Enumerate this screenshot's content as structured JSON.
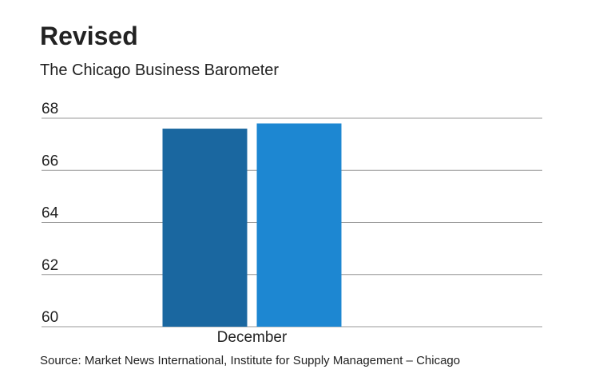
{
  "chart_data": {
    "type": "bar",
    "title": "Revised",
    "subtitle": "The Chicago Business Barometer",
    "categories": [
      "December"
    ],
    "series": [
      {
        "color": "#1a67a0",
        "values": [
          67.6
        ]
      },
      {
        "color": "#1d87d2",
        "values": [
          67.8
        ]
      }
    ],
    "ylim": [
      60,
      68
    ],
    "yticks": [
      60,
      62,
      64,
      66,
      68
    ],
    "grid": true,
    "source": "Source: Market News International, Institute for Supply Management – Chicago"
  }
}
